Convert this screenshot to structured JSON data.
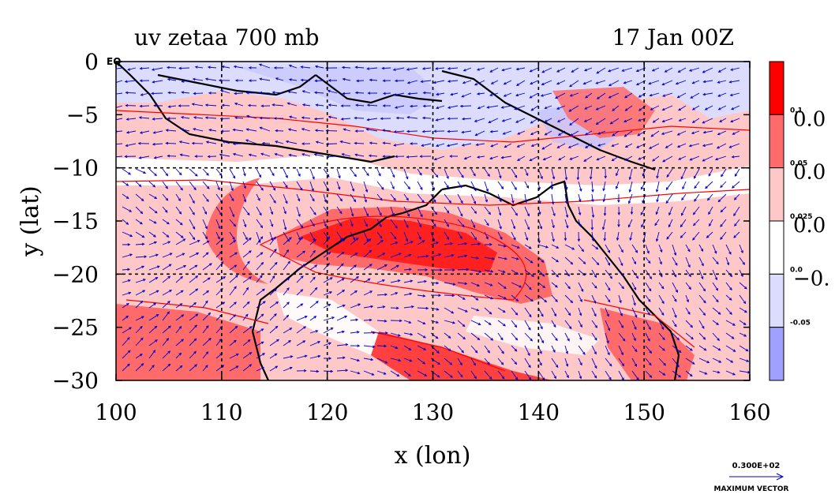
{
  "chart_data": {
    "type": "heatmap",
    "title": "uv zetaa 700 mb",
    "time_label": "17 Jan 00Z",
    "xlabel": "x (lon)",
    "ylabel": "y (lat)",
    "xlim": [
      100,
      160
    ],
    "ylim": [
      -30,
      0
    ],
    "x_ticks": [
      "100",
      "110",
      "120",
      "130",
      "140",
      "150",
      "160"
    ],
    "y_ticks": [
      "0",
      "−5",
      "−10",
      "−15",
      "−20",
      "−25",
      "−30"
    ],
    "y_tick_values": [
      0,
      -5,
      -10,
      -15,
      -20,
      -25,
      -30
    ],
    "x_tick_values": [
      100,
      110,
      120,
      130,
      140,
      150,
      160
    ],
    "eq_label": "EQ",
    "grid": true,
    "colorbar": {
      "levels": [
        {
          "label": "0.1",
          "color": "#ff0000"
        },
        {
          "label": "0.05",
          "color": "#ff6b6b"
        },
        {
          "label": "0.025",
          "color": "#ffc8c8"
        },
        {
          "label": "0.0",
          "color": "#ffffff"
        },
        {
          "label": "-0.05",
          "color": "#dcdcff"
        },
        {
          "label": "",
          "color": "#a0a0ff"
        }
      ],
      "side_labels": [
        "0.0",
        "0.0",
        "0.0",
        "−0."
      ]
    },
    "vector_legend": {
      "value": "0.300E+02",
      "caption": "MAXIMUM VECTOR"
    },
    "colors": {
      "coast": "#000000",
      "grid": "#000000",
      "vectors": "#0000cc",
      "contour": "#ff0000"
    }
  }
}
